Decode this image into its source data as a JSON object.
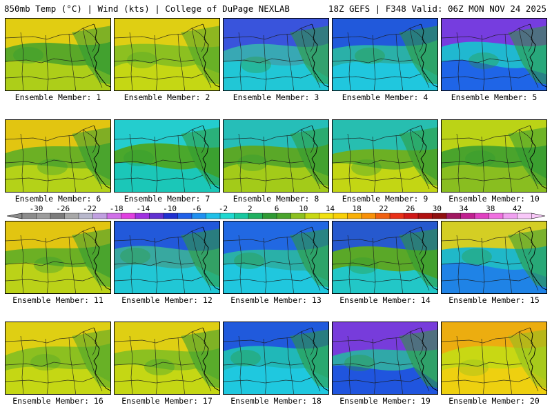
{
  "header": {
    "left": "850mb Temp (°C) | Wind (kts) | College of DuPage NEXLAB",
    "right": "18Z GEFS | F348 Valid: 06Z MON NOV 24 2025"
  },
  "members": [
    {
      "label": "Ensemble Member: 1",
      "fill": [
        "#5aa828",
        "#2f9a34",
        "#b2d018",
        "#f0d010"
      ]
    },
    {
      "label": "Ensemble Member: 2",
      "fill": [
        "#8cc020",
        "#4aa42c",
        "#c8d814",
        "#e8d012"
      ]
    },
    {
      "label": "Ensemble Member: 3",
      "fill": [
        "#38a8b4",
        "#2f9a34",
        "#20c8d8",
        "#3a4ae0"
      ]
    },
    {
      "label": "Ensemble Member: 4",
      "fill": [
        "#2ab0a8",
        "#2f9a34",
        "#20c8e0",
        "#2050e0"
      ]
    },
    {
      "label": "Ensemble Member: 5",
      "fill": [
        "#20b8d0",
        "#2f9a34",
        "#2060e8",
        "#8030e0"
      ]
    },
    {
      "label": "Ensemble Member: 6",
      "fill": [
        "#6cb024",
        "#2f9a34",
        "#b8d418",
        "#f0c810"
      ]
    },
    {
      "label": "Ensemble Member: 7",
      "fill": [
        "#4aa82c",
        "#2f9a34",
        "#18c8c0",
        "#20d0e0"
      ]
    },
    {
      "label": "Ensemble Member: 8",
      "fill": [
        "#5aa828",
        "#2f9a34",
        "#a8cc18",
        "#20c0c8"
      ]
    },
    {
      "label": "Ensemble Member: 9",
      "fill": [
        "#6cb024",
        "#2f9a34",
        "#c8d814",
        "#20c0c0"
      ]
    },
    {
      "label": "Ensemble Member: 10",
      "fill": [
        "#4aa42c",
        "#2f9a34",
        "#8cc020",
        "#c8d814"
      ]
    },
    {
      "label": "Ensemble Member: 11",
      "fill": [
        "#6cb024",
        "#2f9a34",
        "#c0d418",
        "#f0c810"
      ]
    },
    {
      "label": "Ensemble Member: 12",
      "fill": [
        "#38a8a0",
        "#2f9a34",
        "#20c8d8",
        "#2050e0"
      ]
    },
    {
      "label": "Ensemble Member: 13",
      "fill": [
        "#2ab0a8",
        "#2f9a34",
        "#20c8e0",
        "#2060e8"
      ]
    },
    {
      "label": "Ensemble Member: 14",
      "fill": [
        "#5aa828",
        "#2f9a34",
        "#20c8d0",
        "#2050e0"
      ]
    },
    {
      "label": "Ensemble Member: 15",
      "fill": [
        "#20b8c8",
        "#2f9a34",
        "#2080e8",
        "#e8d012"
      ]
    },
    {
      "label": "Ensemble Member: 16",
      "fill": [
        "#8cc020",
        "#4aa42c",
        "#c8d814",
        "#e8d012"
      ]
    },
    {
      "label": "Ensemble Member: 17",
      "fill": [
        "#8cc020",
        "#2f9a34",
        "#c8d814",
        "#e8d012"
      ]
    },
    {
      "label": "Ensemble Member: 18",
      "fill": [
        "#20b8b8",
        "#2f9a34",
        "#20c8e0",
        "#2050e0"
      ]
    },
    {
      "label": "Ensemble Member: 19",
      "fill": [
        "#30a8a8",
        "#2f9a34",
        "#2050e0",
        "#8030e0"
      ]
    },
    {
      "label": "Ensemble Member: 20",
      "fill": [
        "#c8d814",
        "#8cc020",
        "#f0d010",
        "#f0a810"
      ]
    }
  ],
  "colorbar": {
    "labels": [
      "-30",
      "-26",
      "-22",
      "-18",
      "-14",
      "-10",
      "-6",
      "-2",
      "2",
      "6",
      "10",
      "14",
      "18",
      "22",
      "26",
      "30",
      "34",
      "38",
      "42"
    ],
    "colors": [
      "#8c8c8c",
      "#9c9c9c",
      "#7c7c7c",
      "#a8a8a8",
      "#b8b8cc",
      "#c0a0e0",
      "#d070e8",
      "#e040e0",
      "#a030e0",
      "#6030d0",
      "#2030d0",
      "#2060e8",
      "#2090f0",
      "#20c0e8",
      "#20d8d0",
      "#18c8a0",
      "#20b060",
      "#2f9a34",
      "#4aa42c",
      "#8cc020",
      "#c8d814",
      "#f0e010",
      "#f8d008",
      "#f8b008",
      "#f89008",
      "#f06010",
      "#e83018",
      "#d01818",
      "#b01010",
      "#901010",
      "#a01860",
      "#c02090",
      "#e040c0",
      "#f070e0",
      "#f0a0f0",
      "#f8c8f8"
    ]
  }
}
